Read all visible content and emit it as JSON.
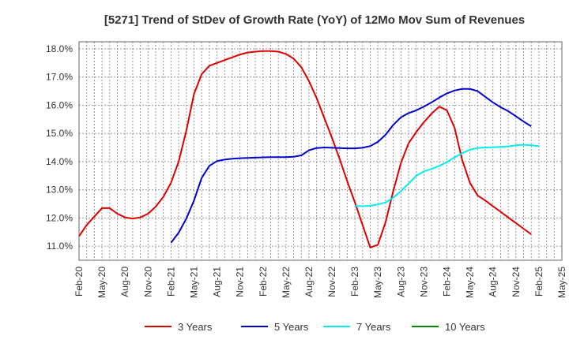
{
  "chart_data": {
    "type": "line",
    "title": "[5271]  Trend of StDev of Growth Rate (YoY) of 12Mo Mov Sum of Revenues",
    "xlabel": "",
    "ylabel": "",
    "x_tick_labels": [
      "Feb-20",
      "May-20",
      "Aug-20",
      "Nov-20",
      "Feb-21",
      "May-21",
      "Aug-21",
      "Nov-21",
      "Feb-22",
      "May-22",
      "Aug-22",
      "Nov-22",
      "Feb-23",
      "May-23",
      "Aug-23",
      "Nov-23",
      "Feb-24",
      "May-24",
      "Aug-24",
      "Nov-24",
      "Feb-25",
      "May-25"
    ],
    "y_tick_labels": [
      "11.0%",
      "12.0%",
      "13.0%",
      "14.0%",
      "15.0%",
      "16.0%",
      "17.0%",
      "18.0%"
    ],
    "ylim": [
      10.5,
      18.25
    ],
    "y_ticks": [
      11,
      12,
      13,
      14,
      15,
      16,
      17,
      18
    ],
    "x_range_months": [
      0,
      63
    ],
    "grid": true,
    "legend_position": "bottom",
    "series": [
      {
        "name": "3 Years",
        "color": "#dd0000",
        "start_month": 0,
        "values": [
          11.35,
          11.75,
          12.05,
          12.35,
          12.35,
          12.15,
          12.02,
          11.98,
          12.02,
          12.15,
          12.4,
          12.75,
          13.25,
          14.0,
          15.1,
          16.4,
          17.1,
          17.4,
          17.5,
          17.6,
          17.7,
          17.8,
          17.87,
          17.9,
          17.92,
          17.92,
          17.9,
          17.82,
          17.65,
          17.35,
          16.85,
          16.25,
          15.55,
          14.85,
          14.1,
          13.3,
          12.55,
          11.75,
          10.95,
          11.05,
          11.85,
          12.95,
          13.95,
          14.65,
          15.05,
          15.4,
          15.7,
          15.95,
          15.82,
          15.2,
          14.05,
          13.25,
          12.8,
          12.62,
          12.42,
          12.22,
          12.02,
          11.82,
          11.62,
          11.42
        ]
      },
      {
        "name": "5 Years",
        "color": "#0000cc",
        "start_month": 12,
        "values": [
          11.12,
          11.48,
          11.98,
          12.62,
          13.42,
          13.85,
          14.02,
          14.07,
          14.1,
          14.12,
          14.13,
          14.14,
          14.15,
          14.16,
          14.16,
          14.16,
          14.17,
          14.22,
          14.4,
          14.48,
          14.5,
          14.49,
          14.48,
          14.47,
          14.47,
          14.49,
          14.55,
          14.7,
          14.95,
          15.3,
          15.57,
          15.72,
          15.82,
          15.95,
          16.1,
          16.27,
          16.42,
          16.52,
          16.58,
          16.58,
          16.5,
          16.3,
          16.1,
          15.93,
          15.79,
          15.61,
          15.42,
          15.25
        ]
      },
      {
        "name": "7 Years",
        "color": "#00eeee",
        "start_month": 36,
        "values": [
          12.42,
          12.42,
          12.43,
          12.48,
          12.55,
          12.72,
          12.95,
          13.22,
          13.5,
          13.65,
          13.74,
          13.85,
          13.98,
          14.15,
          14.3,
          14.42,
          14.48,
          14.5,
          14.51,
          14.52,
          14.54,
          14.58,
          14.6,
          14.58,
          14.55
        ]
      },
      {
        "name": "10 Years",
        "color": "#008800",
        "start_month": 0,
        "values": []
      }
    ]
  }
}
